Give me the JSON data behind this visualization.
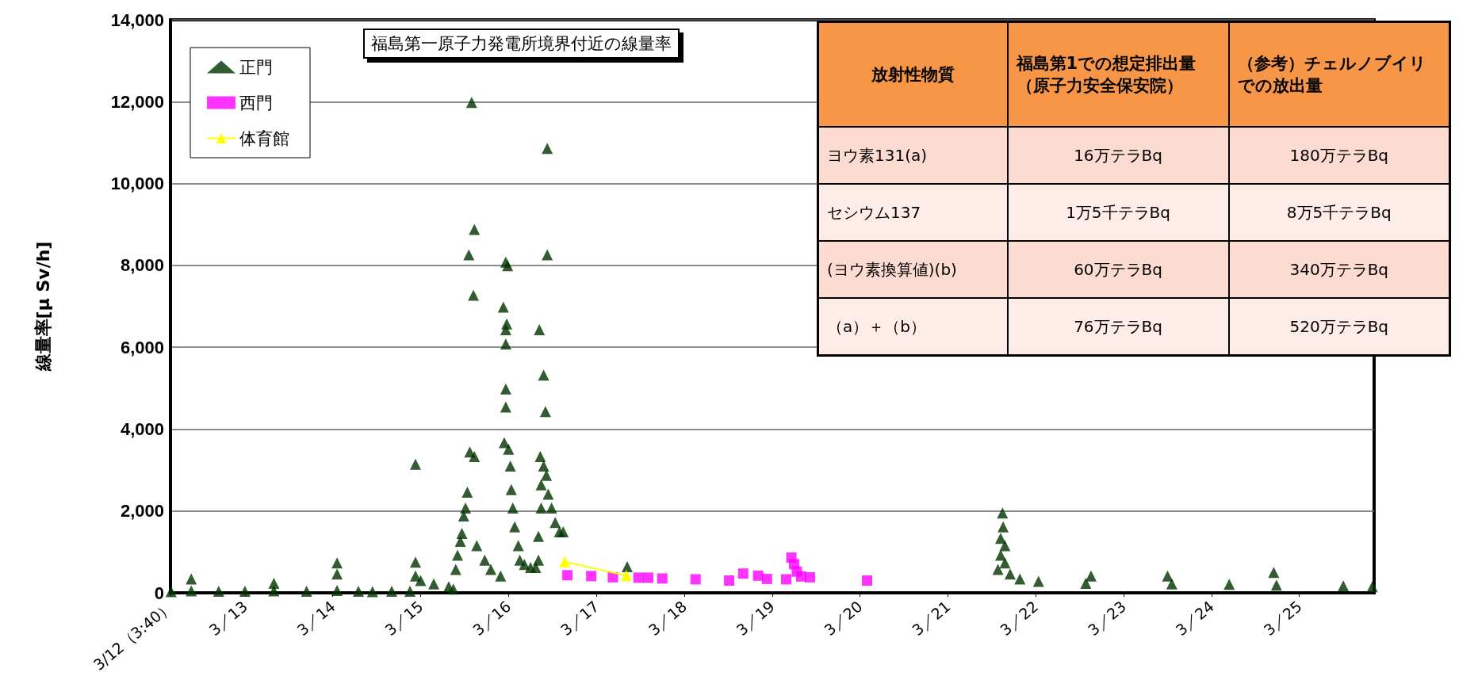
{
  "chart_data": {
    "type": "scatter",
    "title": "福島第一原子力発電所境界付近の線量率",
    "ylabel": "線量率[μ Sv/h]",
    "xlim": [
      "--03-12T03:40",
      "--03-25T20:25"
    ],
    "ylim": [
      0,
      14000
    ],
    "xticks": [
      {
        "value": "--03-12T03:40",
        "label": "3/12（3:40）"
      },
      {
        "value": "--03-13",
        "label": "3／13"
      },
      {
        "value": "--03-14",
        "label": "3／14"
      },
      {
        "value": "--03-15",
        "label": "3／15"
      },
      {
        "value": "--03-16",
        "label": "3／16"
      },
      {
        "value": "--03-17",
        "label": "3／17"
      },
      {
        "value": "--03-18",
        "label": "3／18"
      },
      {
        "value": "--03-19",
        "label": "3／19"
      },
      {
        "value": "--03-20",
        "label": "3／20"
      },
      {
        "value": "--03-21",
        "label": "3／21"
      },
      {
        "value": "--03-22",
        "label": "3／22"
      },
      {
        "value": "--03-23",
        "label": "3／23"
      },
      {
        "value": "--03-24",
        "label": "3／24"
      },
      {
        "value": "--03-25",
        "label": "3／25"
      }
    ],
    "yticks": [
      {
        "value": 0,
        "label": "0"
      },
      {
        "value": 2000,
        "label": "2,000"
      },
      {
        "value": 4000,
        "label": "4,000"
      },
      {
        "value": 6000,
        "label": "6,000"
      },
      {
        "value": 8000,
        "label": "8,000"
      },
      {
        "value": 10000,
        "label": "10,000"
      },
      {
        "value": 12000,
        "label": "12,000"
      },
      {
        "value": 14000,
        "label": "14,000"
      }
    ],
    "grid": "y",
    "legend": "top left",
    "series": [
      {
        "name": "正門",
        "color": "#003300",
        "marker": "triangle",
        "x": [
          "--03-12T03:50",
          "--03-12T09:20",
          "--03-12T09:20",
          "--03-12T16:50",
          "--03-13T00:00",
          "--03-13T07:55",
          "--03-13T07:55",
          "--03-13T16:50",
          "--03-14T01:10",
          "--03-14T01:10",
          "--03-14T01:10",
          "--03-14T07:00",
          "--03-14T10:50",
          "--03-14T16:05",
          "--03-14T21:05",
          "--03-14T22:35",
          "--03-14T22:35",
          "--03-14T22:35",
          "--03-15T00:00",
          "--03-15T03:35",
          "--03-15T07:40",
          "--03-15T08:55",
          "--03-15T09:35",
          "--03-15T10:05",
          "--03-15T10:50",
          "--03-15T11:15",
          "--03-15T11:45",
          "--03-15T12:15",
          "--03-15T12:45",
          "--03-15T13:25",
          "--03-15T14:40",
          "--03-15T13:55",
          "--03-15T13:10",
          "--03-15T14:40",
          "--03-15T14:25",
          "--03-15T15:20",
          "--03-15T17:30",
          "--03-15T19:10",
          "--03-15T21:50",
          "--03-15T22:35",
          "--03-15T23:15",
          "--03-15T23:45",
          "--03-15T23:30",
          "--03-15T23:15",
          "--03-15T23:15",
          "--03-15T23:15",
          "--03-15T23:15",
          "--03-15T22:50",
          "--03-16T00:00",
          "--03-16T00:30",
          "--03-16T00:45",
          "--03-16T01:10",
          "--03-16T01:40",
          "--03-16T02:40",
          "--03-16T03:05",
          "--03-16T04:20",
          "--03-16T06:00",
          "--03-16T07:25",
          "--03-16T08:10",
          "--03-16T08:10",
          "--03-16T08:25",
          "--03-16T08:40",
          "--03-16T08:55",
          "--03-16T08:55",
          "--03-16T09:35",
          "--03-16T09:35",
          "--03-16T10:05",
          "--03-16T10:35",
          "--03-16T10:35",
          "--03-16T10:20",
          "--03-16T10:50",
          "--03-16T11:45",
          "--03-16T12:45",
          "--03-16T13:55",
          "--03-16T14:55",
          "--03-17T08:25",
          "--03-21T13:40",
          "--03-21T14:25",
          "--03-21T14:55",
          "--03-21T15:05",
          "--03-21T15:35",
          "--03-21T14:25",
          "--03-21T15:35",
          "--03-21T17:00",
          "--03-21T19:40",
          "--03-22T00:45",
          "--03-22T13:40",
          "--03-22T15:05",
          "--03-23T12:00",
          "--03-23T13:10",
          "--03-24T04:50",
          "--03-24T17:00",
          "--03-24T17:45",
          "--03-25T12:00",
          "--03-25T19:55"
        ],
        "values": [
          30,
          50,
          340,
          40,
          40,
          230,
          50,
          40,
          730,
          460,
          60,
          40,
          30,
          40,
          40,
          3140,
          750,
          410,
          300,
          220,
          150,
          90,
          570,
          920,
          1260,
          1450,
          1880,
          2070,
          2460,
          3440,
          3330,
          11980,
          8260,
          8880,
          7270,
          1150,
          800,
          570,
          410,
          6980,
          8080,
          7990,
          6570,
          6430,
          6080,
          4980,
          4540,
          3670,
          3510,
          3100,
          2520,
          2070,
          1610,
          1150,
          800,
          690,
          620,
          620,
          1380,
          800,
          6430,
          3330,
          2070,
          2640,
          5320,
          3100,
          4430,
          10860,
          8260,
          2870,
          2410,
          2070,
          1720,
          1490,
          1490,
          640,
          570,
          1330,
          1950,
          1610,
          1150,
          920,
          730,
          460,
          340,
          280,
          230,
          410,
          410,
          220,
          210,
          500,
          190,
          170,
          150
        ]
      },
      {
        "name": "西門",
        "color": "#ff00ff",
        "marker": "square",
        "x": [
          "--03-16T16:05",
          "--03-16T22:35",
          "--03-17T04:30",
          "--03-17T11:30",
          "--03-17T14:10",
          "--03-17T18:00",
          "--03-18T03:05",
          "--03-18T12:15",
          "--03-18T16:05",
          "--03-18T20:10",
          "--03-18T22:35",
          "--03-19T03:50",
          "--03-19T05:15",
          "--03-19T06:00",
          "--03-19T06:45",
          "--03-19T07:55",
          "--03-19T10:20",
          "--03-20T01:55"
        ],
        "values": [
          430,
          410,
          380,
          370,
          370,
          350,
          330,
          300,
          470,
          420,
          340,
          330,
          860,
          700,
          520,
          400,
          380,
          300
        ]
      },
      {
        "name": "体育館",
        "color": "#ffff00",
        "type": "line",
        "marker": "triangle",
        "x": [
          "--03-16T15:20",
          "--03-17T08:10"
        ],
        "values": [
          760,
          420
        ]
      }
    ],
    "annotations": [
      "放射性物質",
      "福島第1での想定排出量（原子力安全保安院）",
      "（参考）チェルノブイリでの放出量",
      "ヨウ素131(a)",
      "16万テラBq",
      "180万テラBq",
      "セシウム137",
      "1万5千テラBq",
      "8万5千テラBq",
      "(ヨウ素換算値)(b)",
      "60万テラBq",
      "340万テラBq",
      "（a）＋（b）",
      "76万テラBq",
      "520万テラBq"
    ]
  }
}
